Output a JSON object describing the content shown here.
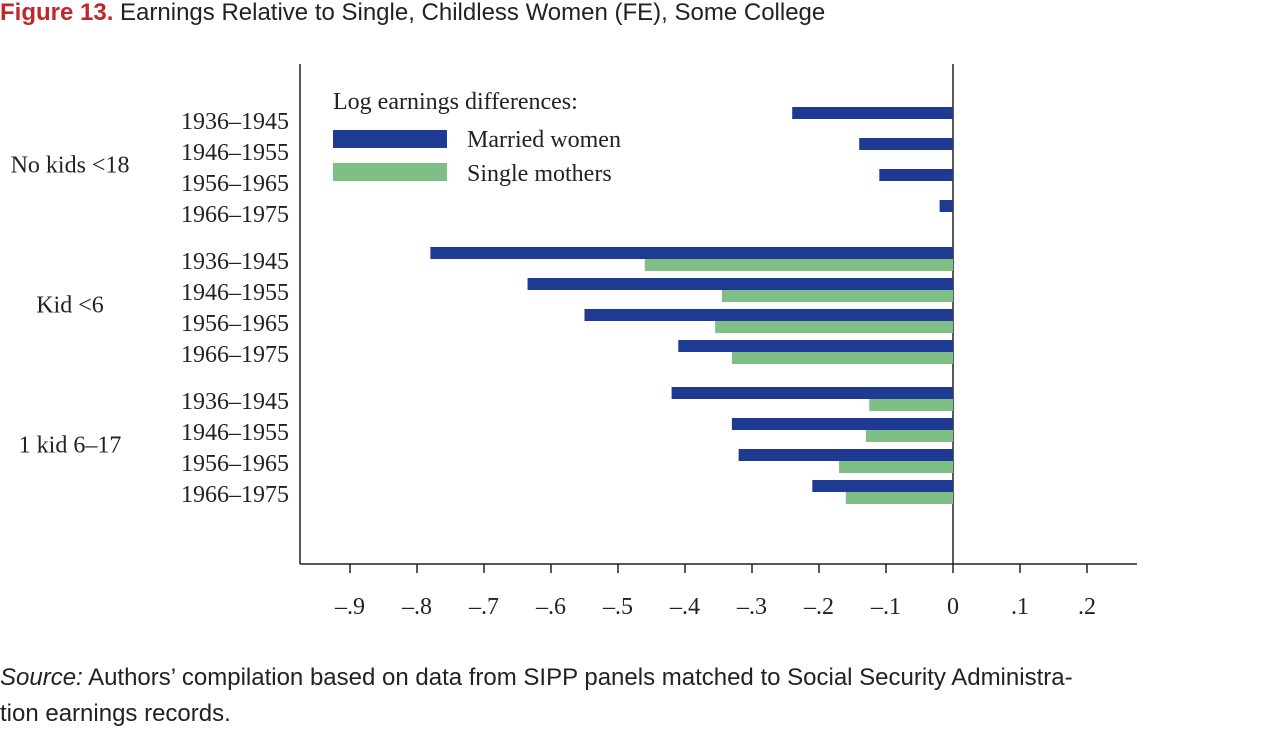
{
  "figure": {
    "number": "Figure 13.",
    "title": "Earnings Relative to Single, Childless Women (FE), Some College"
  },
  "source": {
    "label": "Source:",
    "line1": " Authors’ compilation based on data from SIPP panels matched to Social Security Administra-",
    "line2": "tion earnings records."
  },
  "colors": {
    "married": "#1f3a93",
    "single": "#7fbf86",
    "axis": "#222222",
    "text": "#222222"
  },
  "chart_data": {
    "type": "bar",
    "orientation": "horizontal",
    "legend": {
      "title": "Log earnings differences:",
      "placement": "top-left"
    },
    "xlim": [
      -0.97,
      0.27
    ],
    "xticks": [
      -0.9,
      -0.8,
      -0.7,
      -0.6,
      -0.5,
      -0.4,
      -0.3,
      -0.2,
      -0.1,
      0,
      0.1,
      0.2
    ],
    "xtick_labels": [
      "–.9",
      "–.8",
      "–.7",
      "–.6",
      "–.5",
      "–.4",
      "–.3",
      "–.2",
      "–.1",
      "0",
      ".1",
      ".2"
    ],
    "grid": false,
    "groups": [
      {
        "label": "No kids <18",
        "categories": [
          "1936–1945",
          "1946–1955",
          "1956–1965",
          "1966–1975"
        ]
      },
      {
        "label": "Kid <6",
        "categories": [
          "1936–1945",
          "1946–1955",
          "1956–1965",
          "1966–1975"
        ]
      },
      {
        "label": "1 kid 6–17",
        "categories": [
          "1936–1945",
          "1946–1955",
          "1956–1965",
          "1966–1975"
        ]
      }
    ],
    "series": [
      {
        "name": "Married women",
        "values": [
          -0.24,
          -0.14,
          -0.11,
          -0.02,
          -0.78,
          -0.635,
          -0.55,
          -0.41,
          -0.42,
          -0.33,
          -0.32,
          -0.21
        ]
      },
      {
        "name": "Single mothers",
        "values": [
          null,
          null,
          null,
          null,
          -0.46,
          -0.345,
          -0.355,
          -0.33,
          -0.125,
          -0.13,
          -0.17,
          -0.16
        ]
      }
    ]
  }
}
